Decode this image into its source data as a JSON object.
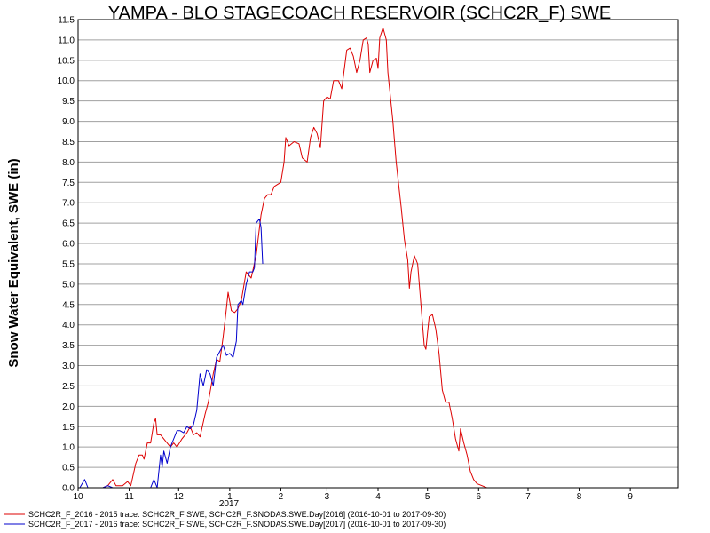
{
  "chart_data": {
    "type": "line",
    "title": "YAMPA - BLO STAGECOACH RESERVOIR (SCHC2R_F) SWE",
    "ylabel": "Snow Water Equivalent, SWE (in)",
    "xlabel": "",
    "ylim": [
      0,
      11.5
    ],
    "xlim": [
      "2016-10-01",
      "2017-09-30"
    ],
    "grid": true,
    "legend_position": "bottom-left",
    "y_ticks": [
      "0.0",
      "0.5",
      "1.0",
      "1.5",
      "2.0",
      "2.5",
      "3.0",
      "3.5",
      "4.0",
      "4.5",
      "5.0",
      "5.5",
      "6.0",
      "6.5",
      "7.0",
      "7.5",
      "8.0",
      "8.5",
      "9.0",
      "9.5",
      "10.0",
      "10.5",
      "11.0",
      "11.5"
    ],
    "x_ticks": [
      {
        "label": "10",
        "date": "2016-10-01"
      },
      {
        "label": "11",
        "date": "2016-11-01"
      },
      {
        "label": "12",
        "date": "2016-12-01"
      },
      {
        "label": "1",
        "date": "2017-01-01"
      },
      {
        "label": "2",
        "date": "2017-02-01"
      },
      {
        "label": "3",
        "date": "2017-03-01"
      },
      {
        "label": "4",
        "date": "2017-04-01"
      },
      {
        "label": "5",
        "date": "2017-05-01"
      },
      {
        "label": "6",
        "date": "2017-06-01"
      },
      {
        "label": "7",
        "date": "2017-07-01"
      },
      {
        "label": "8",
        "date": "2017-08-01"
      },
      {
        "label": "9",
        "date": "2017-09-01"
      }
    ],
    "year_label": "2017",
    "series": [
      {
        "name": "SCHC2R_F_2016 - 2015 trace: SCHC2R_F SWE, SCHC2R_F.SNODAS.SWE.Day[2016] (2016-10-01 to 2017-09-30)",
        "color": "#dd0000",
        "points": [
          [
            "2016-10-01",
            0.0
          ],
          [
            "2016-10-16",
            0.0
          ],
          [
            "2016-10-19",
            0.05
          ],
          [
            "2016-10-22",
            0.2
          ],
          [
            "2016-10-24",
            0.05
          ],
          [
            "2016-10-28",
            0.05
          ],
          [
            "2016-10-31",
            0.15
          ],
          [
            "2016-11-02",
            0.05
          ],
          [
            "2016-11-05",
            0.6
          ],
          [
            "2016-11-07",
            0.8
          ],
          [
            "2016-11-09",
            0.8
          ],
          [
            "2016-11-10",
            0.7
          ],
          [
            "2016-11-12",
            1.1
          ],
          [
            "2016-11-14",
            1.1
          ],
          [
            "2016-11-16",
            1.6
          ],
          [
            "2016-11-17",
            1.7
          ],
          [
            "2016-11-18",
            1.3
          ],
          [
            "2016-11-20",
            1.3
          ],
          [
            "2016-11-23",
            1.15
          ],
          [
            "2016-11-26",
            1.0
          ],
          [
            "2016-11-28",
            1.1
          ],
          [
            "2016-11-30",
            1.0
          ],
          [
            "2016-12-03",
            1.2
          ],
          [
            "2016-12-06",
            1.35
          ],
          [
            "2016-12-08",
            1.5
          ],
          [
            "2016-12-10",
            1.3
          ],
          [
            "2016-12-12",
            1.35
          ],
          [
            "2016-12-14",
            1.25
          ],
          [
            "2016-12-17",
            1.8
          ],
          [
            "2016-12-19",
            2.1
          ],
          [
            "2016-12-22",
            2.8
          ],
          [
            "2016-12-24",
            3.15
          ],
          [
            "2016-12-26",
            3.1
          ],
          [
            "2016-12-28",
            3.7
          ],
          [
            "2016-12-30",
            4.4
          ],
          [
            "2016-12-31",
            4.8
          ],
          [
            "2017-01-02",
            4.35
          ],
          [
            "2017-01-04",
            4.3
          ],
          [
            "2017-01-06",
            4.4
          ],
          [
            "2017-01-08",
            4.6
          ],
          [
            "2017-01-11",
            5.3
          ],
          [
            "2017-01-14",
            5.15
          ],
          [
            "2017-01-17",
            5.7
          ],
          [
            "2017-01-20",
            6.7
          ],
          [
            "2017-01-22",
            7.1
          ],
          [
            "2017-01-24",
            7.2
          ],
          [
            "2017-01-26",
            7.2
          ],
          [
            "2017-01-28",
            7.4
          ],
          [
            "2017-01-30",
            7.45
          ],
          [
            "2017-02-01",
            7.5
          ],
          [
            "2017-02-03",
            8.0
          ],
          [
            "2017-02-04",
            8.6
          ],
          [
            "2017-02-06",
            8.4
          ],
          [
            "2017-02-09",
            8.5
          ],
          [
            "2017-02-12",
            8.45
          ],
          [
            "2017-02-14",
            8.1
          ],
          [
            "2017-02-17",
            8.0
          ],
          [
            "2017-02-19",
            8.6
          ],
          [
            "2017-02-21",
            8.85
          ],
          [
            "2017-02-23",
            8.7
          ],
          [
            "2017-02-25",
            8.35
          ],
          [
            "2017-02-27",
            9.5
          ],
          [
            "2017-03-01",
            9.6
          ],
          [
            "2017-03-03",
            9.55
          ],
          [
            "2017-03-05",
            10.0
          ],
          [
            "2017-03-08",
            10.0
          ],
          [
            "2017-03-10",
            9.8
          ],
          [
            "2017-03-13",
            10.75
          ],
          [
            "2017-03-15",
            10.8
          ],
          [
            "2017-03-17",
            10.6
          ],
          [
            "2017-03-19",
            10.2
          ],
          [
            "2017-03-21",
            10.5
          ],
          [
            "2017-03-23",
            11.0
          ],
          [
            "2017-03-25",
            11.05
          ],
          [
            "2017-03-26",
            10.9
          ],
          [
            "2017-03-27",
            10.2
          ],
          [
            "2017-03-29",
            10.5
          ],
          [
            "2017-03-31",
            10.55
          ],
          [
            "2017-04-01",
            10.3
          ],
          [
            "2017-04-02",
            11.05
          ],
          [
            "2017-04-04",
            11.3
          ],
          [
            "2017-04-06",
            11.0
          ],
          [
            "2017-04-07",
            10.2
          ],
          [
            "2017-04-08",
            9.8
          ],
          [
            "2017-04-10",
            9.0
          ],
          [
            "2017-04-12",
            8.0
          ],
          [
            "2017-04-15",
            6.9
          ],
          [
            "2017-04-17",
            6.1
          ],
          [
            "2017-04-19",
            5.6
          ],
          [
            "2017-04-20",
            4.9
          ],
          [
            "2017-04-21",
            5.3
          ],
          [
            "2017-04-23",
            5.7
          ],
          [
            "2017-04-25",
            5.5
          ],
          [
            "2017-04-27",
            4.5
          ],
          [
            "2017-04-29",
            3.5
          ],
          [
            "2017-04-30",
            3.4
          ],
          [
            "2017-05-01",
            3.8
          ],
          [
            "2017-05-02",
            4.2
          ],
          [
            "2017-05-04",
            4.25
          ],
          [
            "2017-05-06",
            3.9
          ],
          [
            "2017-05-08",
            3.3
          ],
          [
            "2017-05-10",
            2.4
          ],
          [
            "2017-05-12",
            2.1
          ],
          [
            "2017-05-14",
            2.1
          ],
          [
            "2017-05-16",
            1.7
          ],
          [
            "2017-05-18",
            1.2
          ],
          [
            "2017-05-20",
            0.9
          ],
          [
            "2017-05-21",
            1.45
          ],
          [
            "2017-05-23",
            1.1
          ],
          [
            "2017-05-25",
            0.8
          ],
          [
            "2017-05-27",
            0.4
          ],
          [
            "2017-05-29",
            0.2
          ],
          [
            "2017-05-31",
            0.1
          ],
          [
            "2017-06-03",
            0.05
          ],
          [
            "2017-06-06",
            0.0
          ]
        ]
      },
      {
        "name": "SCHC2R_F_2017 - 2016 trace: SCHC2R_F SWE, SCHC2R_F.SNODAS.SWE.Day[2017] (2016-10-01 to 2017-09-30)",
        "color": "#0000cc",
        "points": [
          [
            "2016-10-01",
            0.0
          ],
          [
            "2016-10-02",
            0.0
          ],
          [
            "2016-10-05",
            0.2
          ],
          [
            "2016-10-07",
            0.0
          ],
          [
            "2016-10-16",
            0.0
          ],
          [
            "2016-10-19",
            0.05
          ],
          [
            "2016-10-22",
            0.0
          ],
          [
            "2016-11-14",
            0.0
          ],
          [
            "2016-11-16",
            0.2
          ],
          [
            "2016-11-18",
            0.0
          ],
          [
            "2016-11-20",
            0.8
          ],
          [
            "2016-11-21",
            0.5
          ],
          [
            "2016-11-22",
            0.9
          ],
          [
            "2016-11-24",
            0.6
          ],
          [
            "2016-11-26",
            1.0
          ],
          [
            "2016-11-28",
            1.2
          ],
          [
            "2016-11-30",
            1.4
          ],
          [
            "2016-12-02",
            1.4
          ],
          [
            "2016-12-04",
            1.35
          ],
          [
            "2016-12-06",
            1.5
          ],
          [
            "2016-12-08",
            1.45
          ],
          [
            "2016-12-10",
            1.55
          ],
          [
            "2016-12-12",
            1.9
          ],
          [
            "2016-12-14",
            2.8
          ],
          [
            "2016-12-16",
            2.5
          ],
          [
            "2016-12-18",
            2.9
          ],
          [
            "2016-12-20",
            2.8
          ],
          [
            "2016-12-22",
            2.5
          ],
          [
            "2016-12-24",
            3.2
          ],
          [
            "2016-12-26",
            3.35
          ],
          [
            "2016-12-28",
            3.5
          ],
          [
            "2016-12-30",
            3.25
          ],
          [
            "2017-01-01",
            3.3
          ],
          [
            "2017-01-03",
            3.2
          ],
          [
            "2017-01-05",
            3.6
          ],
          [
            "2017-01-06",
            4.5
          ],
          [
            "2017-01-08",
            4.6
          ],
          [
            "2017-01-09",
            4.5
          ],
          [
            "2017-01-11",
            5.0
          ],
          [
            "2017-01-13",
            5.3
          ],
          [
            "2017-01-15",
            5.3
          ],
          [
            "2017-01-16",
            5.4
          ],
          [
            "2017-01-17",
            6.5
          ],
          [
            "2017-01-19",
            6.6
          ],
          [
            "2017-01-20",
            6.4
          ],
          [
            "2017-01-21",
            5.5
          ]
        ]
      }
    ]
  }
}
